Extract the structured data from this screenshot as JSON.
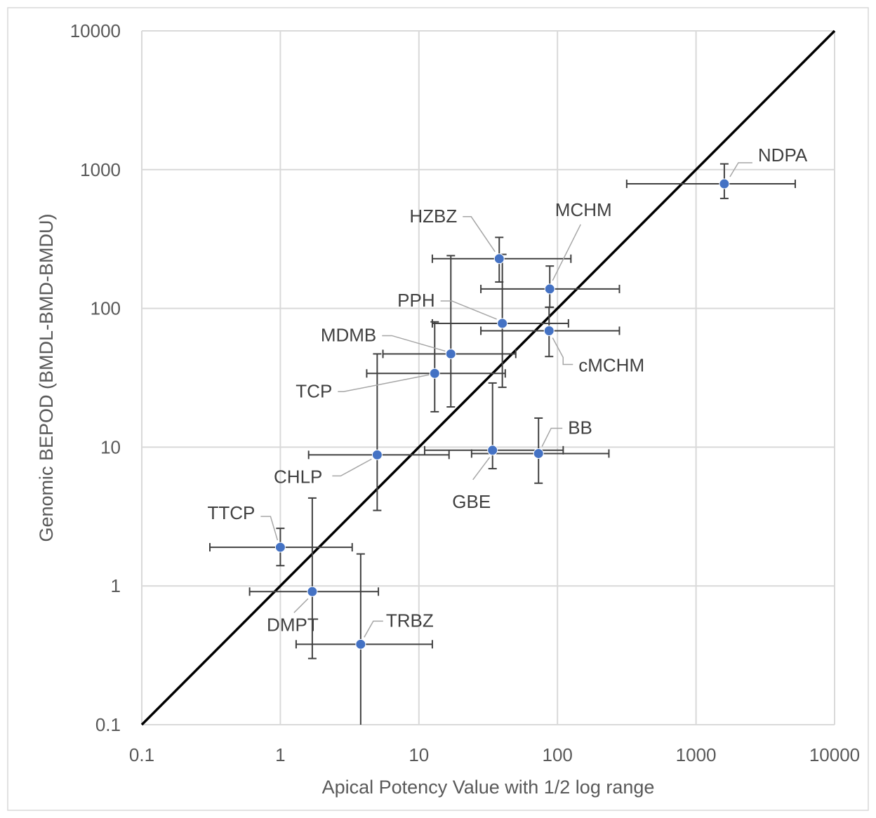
{
  "chart_data": {
    "type": "scatter",
    "title": "",
    "xlabel": "Apical Potency Value with 1/2 log range",
    "ylabel": "Genomic BEPOD (BMDL-BMD-BMDU)",
    "xscale": "log",
    "yscale": "log",
    "xlim": [
      0.1,
      10000
    ],
    "ylim": [
      0.1,
      10000
    ],
    "xticks": [
      "0.1",
      "1",
      "10",
      "100",
      "1000",
      "10000"
    ],
    "yticks": [
      "0.1",
      "1",
      "10",
      "100",
      "1000",
      "10000"
    ],
    "grid": true,
    "legend": "none",
    "colors": {
      "point": "#4472C4",
      "errorbar": "#404040",
      "reference_line": "#000000",
      "grid": "#d9d9d9",
      "leader": "#a6a6a6"
    },
    "reference_line": {
      "x": [
        0.1,
        10000
      ],
      "y": [
        0.1,
        10000
      ]
    },
    "points": [
      {
        "label": "NDPA",
        "x": 1600,
        "y": 790,
        "x_err": [
          316,
          5200
        ],
        "y_err": [
          620,
          1100
        ]
      },
      {
        "label": "HZBZ",
        "x": 38,
        "y": 228,
        "x_err": [
          12.5,
          125
        ],
        "y_err": [
          155,
          325
        ]
      },
      {
        "label": "MCHM",
        "x": 88,
        "y": 138,
        "x_err": [
          28,
          280
        ],
        "y_err": [
          102,
          202
        ]
      },
      {
        "label": "PPH",
        "x": 40,
        "y": 78,
        "x_err": [
          12.5,
          120
        ],
        "y_err": [
          27,
          245
        ]
      },
      {
        "label": "cMCHM",
        "x": 87,
        "y": 69,
        "x_err": [
          28,
          280
        ],
        "y_err": [
          45,
          102
        ]
      },
      {
        "label": "MDMB",
        "x": 17,
        "y": 47,
        "x_err": [
          5.5,
          50
        ],
        "y_err": [
          19.5,
          240
        ]
      },
      {
        "label": "TCP",
        "x": 13,
        "y": 34,
        "x_err": [
          4.2,
          42
        ],
        "y_err": [
          18,
          80
        ]
      },
      {
        "label": "BB",
        "x": 73,
        "y": 9,
        "x_err": [
          24,
          235
        ],
        "y_err": [
          5.5,
          16.2
        ]
      },
      {
        "label": "GBE",
        "x": 34,
        "y": 9.5,
        "x_err": [
          11,
          110
        ],
        "y_err": [
          7,
          29
        ]
      },
      {
        "label": "CHLP",
        "x": 5,
        "y": 8.8,
        "x_err": [
          1.6,
          16.5
        ],
        "y_err": [
          3.5,
          47
        ]
      },
      {
        "label": "TTCP",
        "x": 1,
        "y": 1.9,
        "x_err": [
          0.31,
          3.3
        ],
        "y_err": [
          1.4,
          2.6
        ]
      },
      {
        "label": "DMPT",
        "x": 1.7,
        "y": 0.91,
        "x_err": [
          0.6,
          5.1
        ],
        "y_err": [
          0.3,
          4.3
        ]
      },
      {
        "label": "TRBZ",
        "x": 3.8,
        "y": 0.38,
        "x_err": [
          1.3,
          12.5
        ],
        "y_err": [
          0.1,
          1.7
        ]
      }
    ]
  }
}
